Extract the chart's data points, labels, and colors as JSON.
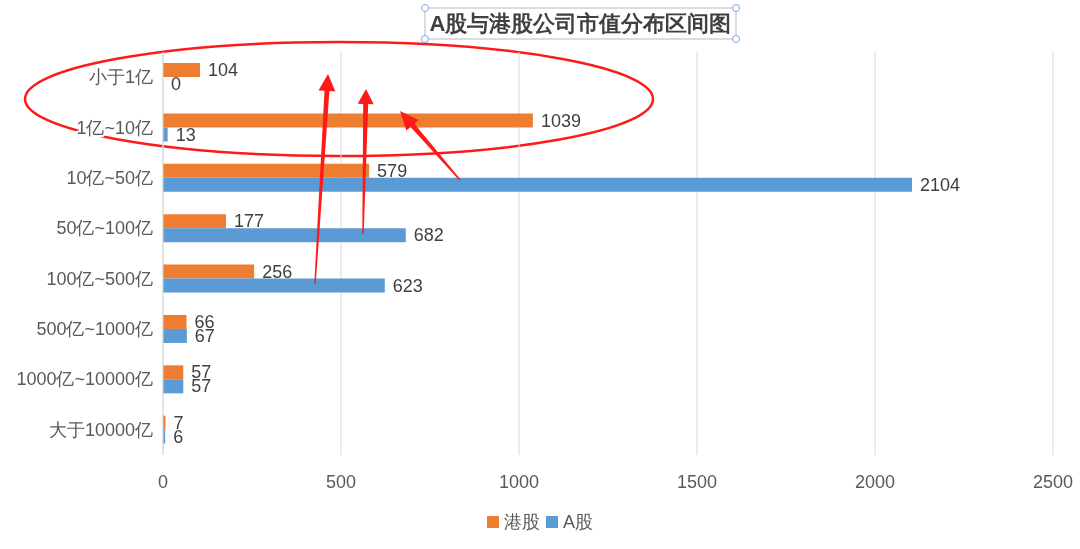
{
  "chart_data": {
    "type": "bar",
    "orientation": "horizontal",
    "title": "A股与港股公司市值分布区间图",
    "categories": [
      "小于1亿",
      "1亿~10亿",
      "10亿~50亿",
      "50亿~100亿",
      "100亿~500亿",
      "500亿~1000亿",
      "1000亿~10000亿",
      "大于10000亿"
    ],
    "series": [
      {
        "name": "港股",
        "color": "#ed7d31",
        "values": [
          104,
          1039,
          579,
          177,
          256,
          66,
          57,
          7
        ]
      },
      {
        "name": "A股",
        "color": "#5b9bd5",
        "values": [
          0,
          13,
          2104,
          682,
          623,
          67,
          57,
          6
        ]
      }
    ],
    "xlim": [
      0,
      2500
    ],
    "xticks": [
      0,
      500,
      1000,
      1500,
      2000,
      2500
    ],
    "grid": "x",
    "legend": "bottom",
    "data_labels": true
  }
}
